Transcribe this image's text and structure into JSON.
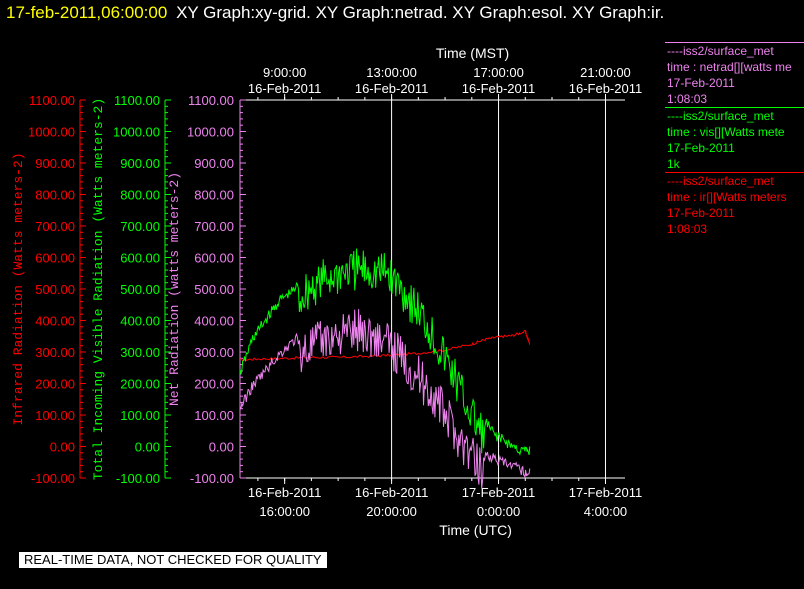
{
  "header": {
    "timestamp": "17-feb-2011,06:00:00",
    "titles": "XY Graph:xy-grid.  XY Graph:netrad.  XY Graph:esol.  XY Graph:ir."
  },
  "footer": {
    "notice": "REAL-TIME DATA, NOT CHECKED FOR QUALITY"
  },
  "legend": [
    {
      "lines": [
        "----iss2/surface_met",
        "time : netrad[][watts me",
        "17-Feb-2011",
        "1:08:03"
      ],
      "color": "#ee82ee"
    },
    {
      "lines": [
        "----iss2/surface_met",
        "time : vis[][Watts mete",
        "17-Feb-2011",
        "1k"
      ],
      "color": "#00ff00"
    },
    {
      "lines": [
        "----iss2/surface_met",
        "time : ir[][Watts meters",
        "17-Feb-2011",
        "1:08:03"
      ],
      "color": "#ff0000"
    }
  ],
  "chart_data": {
    "type": "line",
    "top_axis": {
      "label": "Time (MST)",
      "ticks": [
        {
          "time": "9:00:00",
          "date": "16-Feb-2011"
        },
        {
          "time": "13:00:00",
          "date": "16-Feb-2011"
        },
        {
          "time": "17:00:00",
          "date": "16-Feb-2011"
        },
        {
          "time": "21:00:00",
          "date": "16-Feb-2011"
        }
      ]
    },
    "bottom_axis": {
      "label": "Time (UTC)",
      "ticks": [
        {
          "date": "16-Feb-2011",
          "time": "16:00:00"
        },
        {
          "date": "16-Feb-2011",
          "time": "20:00:00"
        },
        {
          "date": "17-Feb-2011",
          "time": "0:00:00"
        },
        {
          "date": "17-Feb-2011",
          "time": "4:00:00"
        }
      ]
    },
    "x_range_utc": [
      "2011-02-16 14:20",
      "2011-02-17 06:00"
    ],
    "y_axes": [
      {
        "label": "Infrared Radiation (Watts meters-2)",
        "color": "#ff0000",
        "ylim": [
          -100,
          1100
        ],
        "ticks": [
          "-100.00",
          "0.00",
          "100.00",
          "200.00",
          "300.00",
          "400.00",
          "500.00",
          "600.00",
          "700.00",
          "800.00",
          "900.00",
          "1000.00",
          "1100.00"
        ]
      },
      {
        "label": "Total Incoming Visible Radiation (Watts meters-2)",
        "color": "#00ff00",
        "ylim": [
          -100,
          1100
        ],
        "ticks": [
          "-100.00",
          "0.00",
          "100.00",
          "200.00",
          "300.00",
          "400.00",
          "500.00",
          "600.00",
          "700.00",
          "800.00",
          "900.00",
          "1000.00",
          "1100.00"
        ]
      },
      {
        "label": "Net Radiation (watts meters-2)",
        "color": "#ee82ee",
        "ylim": [
          -100,
          1100
        ],
        "ticks": [
          "-100.00",
          "0.00",
          "100.00",
          "200.00",
          "300.00",
          "400.00",
          "500.00",
          "600.00",
          "700.00",
          "800.00",
          "900.00",
          "1000.00",
          "1100.00"
        ]
      }
    ],
    "grid": "vertical",
    "series": [
      {
        "color": "#ff0000",
        "x_utc_hours": [
          14.33,
          15,
          16,
          17,
          18,
          19,
          20,
          21,
          22,
          23,
          23.5,
          24,
          24.5,
          25.0,
          25.17
        ],
        "values": [
          275,
          278,
          280,
          283,
          283,
          286,
          290,
          296,
          306,
          325,
          340,
          348,
          352,
          365,
          325
        ]
      },
      {
        "color": "#00ff00",
        "x_utc_hours": [
          14.33,
          14.8,
          15.3,
          15.8,
          16.3,
          16.8,
          17.3,
          17.8,
          18.3,
          18.8,
          19.3,
          19.8,
          20.3,
          20.8,
          21.3,
          21.8,
          22.3,
          22.8,
          23.3,
          23.8,
          24.3,
          24.8,
          25.17
        ],
        "values": [
          250,
          360,
          420,
          480,
          510,
          560,
          590,
          610,
          625,
          630,
          625,
          620,
          580,
          520,
          460,
          380,
          300,
          200,
          120,
          60,
          30,
          5,
          0
        ]
      },
      {
        "color": "#ee82ee",
        "x_utc_hours": [
          14.33,
          14.8,
          15.3,
          15.8,
          16.3,
          16.8,
          17.3,
          17.8,
          18.3,
          18.8,
          19.3,
          19.8,
          20.3,
          20.8,
          21.3,
          21.8,
          22.3,
          22.8,
          23.3,
          23.8,
          24.3,
          24.8,
          25.17
        ],
        "values": [
          140,
          210,
          260,
          310,
          350,
          380,
          400,
          420,
          430,
          440,
          420,
          400,
          360,
          310,
          260,
          200,
          130,
          60,
          10,
          -20,
          -40,
          -55,
          -70
        ]
      }
    ]
  }
}
